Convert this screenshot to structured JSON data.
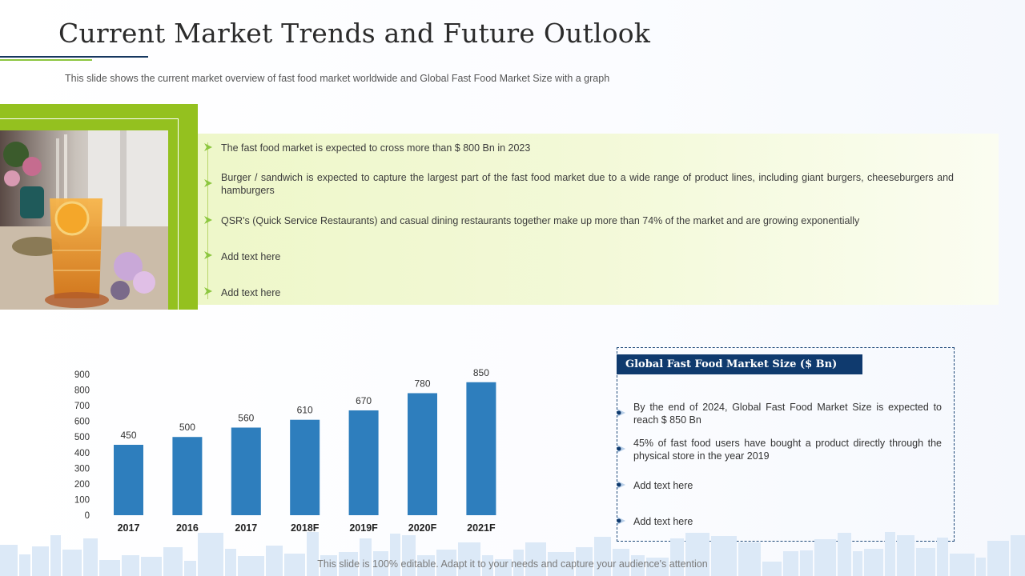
{
  "slide": {
    "title": "Current Market Trends and Future Outlook",
    "subtitle": "This slide shows the current market overview  of fast food  market worldwide  and Global Fast Food Market Size with a graph",
    "footer": "This slide is 100% editable. Adapt it to your needs and capture your audience's attention"
  },
  "bullets": [
    "The fast food  market is expected to cross more than $ 800 Bn in 2023",
    "Burger / sandwich is expected to capture the largest part of the fast food market due to a wide range of product lines, including giant burgers, cheeseburgers and hamburgers",
    "QSR's (Quick Service Restaurants) and casual dining restaurants together make up more than 74% of the market and are growing exponentially",
    "Add text here",
    "Add text here"
  ],
  "market_box": {
    "header": "Global Fast Food Market Size ($ Bn)",
    "items": [
      "By the end of 2024, Global Fast Food Market Size is expected to reach $ 850 Bn",
      "45% of fast food users have  bought a product directly through the physical store in the year 2019",
      "Add text here",
      "Add text here"
    ]
  },
  "colors": {
    "accent_green": "#94c11f",
    "navy": "#0f3a6e",
    "bar": "#2e7ebd"
  },
  "chart_data": {
    "type": "bar",
    "categories": [
      "2017",
      "2016",
      "2017",
      "2018F",
      "2019F",
      "2020F",
      "2021F"
    ],
    "values": [
      450,
      500,
      560,
      610,
      670,
      780,
      850
    ],
    "yticks": [
      0,
      100,
      200,
      300,
      400,
      500,
      600,
      700,
      800,
      900
    ],
    "ylim": [
      0,
      900
    ],
    "title": "",
    "xlabel": "",
    "ylabel": "",
    "grid": false,
    "data_labels": true
  }
}
